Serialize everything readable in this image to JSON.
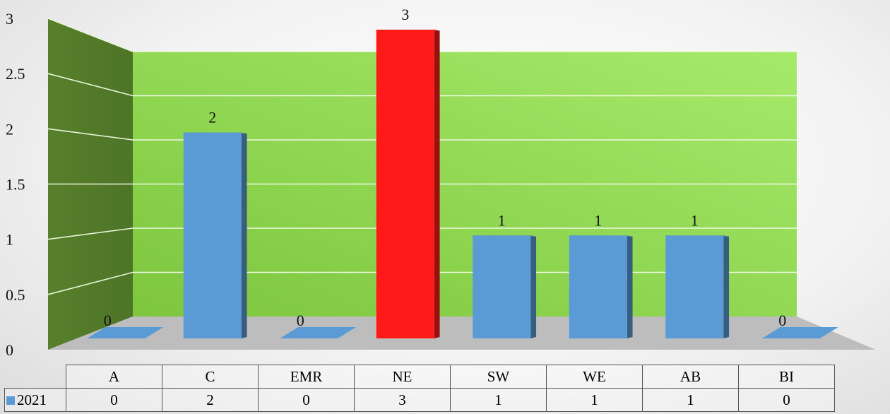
{
  "chart_data": {
    "type": "bar",
    "title": "",
    "xlabel": "",
    "ylabel": "",
    "categories": [
      "A",
      "C",
      "EMR",
      "NE",
      "SW",
      "WE",
      "AB",
      "BI"
    ],
    "series": [
      {
        "name": "2021",
        "values": [
          0,
          2,
          0,
          3,
          1,
          1,
          1,
          0
        ]
      }
    ],
    "ylim": [
      0,
      3
    ],
    "yticks": [
      "0",
      "0.5",
      "1",
      "1.5",
      "2",
      "2.5",
      "3"
    ],
    "data_labels": [
      "0",
      "2",
      "0",
      "3",
      "1",
      "1",
      "1",
      "0"
    ],
    "highlight": {
      "category": "NE",
      "color": "#ff1a1a"
    },
    "colors": {
      "series": "#5b9bd5",
      "back_wall": "#92d050",
      "side_wall": "#5a8a2f",
      "floor": "#bfbfbf"
    },
    "grid": true,
    "legend": "data-table"
  }
}
